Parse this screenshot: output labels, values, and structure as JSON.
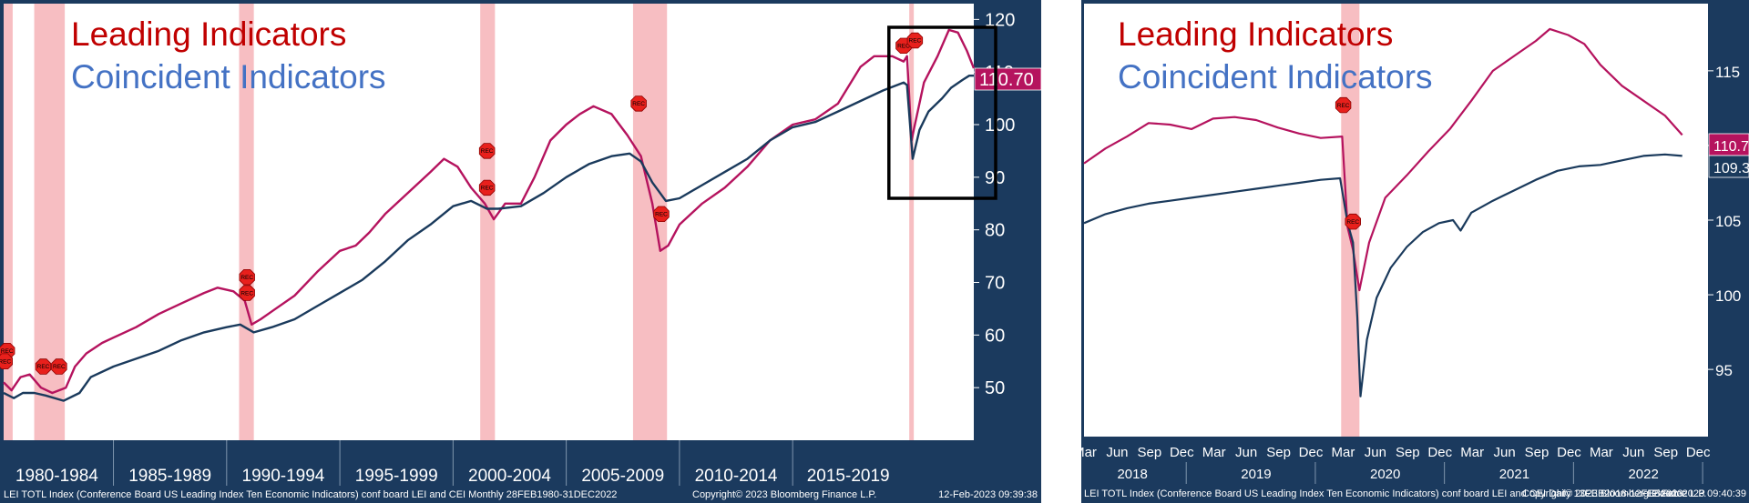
{
  "chart_data": [
    {
      "type": "line",
      "title": "",
      "legend": [
        "Leading Indicators",
        "Coincident Indicators"
      ],
      "legend_placement": "top-left",
      "ylim": [
        40,
        123
      ],
      "yticks": [
        50,
        60,
        70,
        80,
        90,
        100,
        110,
        120
      ],
      "y_axis_side": "right",
      "x_range": [
        1980.15,
        2023.0
      ],
      "period_labels": [
        "1980-1984",
        "1985-1989",
        "1990-1994",
        "1995-1999",
        "2000-2004",
        "2005-2009",
        "2010-2014",
        "2015-2019"
      ],
      "period_starts": [
        1980,
        1985,
        1990,
        1995,
        2000,
        2005,
        2010,
        2015
      ],
      "last_values": [
        {
          "value": "110.70",
          "color": "#b5135e"
        }
      ],
      "recessions": [
        [
          1980.0,
          1980.55
        ],
        [
          1981.5,
          1982.85
        ],
        [
          1990.55,
          1991.2
        ],
        [
          2001.2,
          2001.85
        ],
        [
          2007.95,
          2009.45
        ],
        [
          2020.15,
          2020.35
        ]
      ],
      "rec_markers": [
        {
          "year": 1980.3,
          "value": 57
        },
        {
          "year": 1980.2,
          "value": 55
        },
        {
          "year": 1981.9,
          "value": 54
        },
        {
          "year": 1982.6,
          "value": 54
        },
        {
          "year": 1990.9,
          "value": 71
        },
        {
          "year": 1990.9,
          "value": 68
        },
        {
          "year": 2001.5,
          "value": 95
        },
        {
          "year": 2001.5,
          "value": 88
        },
        {
          "year": 2008.2,
          "value": 104
        },
        {
          "year": 2009.2,
          "value": 83
        },
        {
          "year": 2019.9,
          "value": 115
        },
        {
          "year": 2020.4,
          "value": 116
        }
      ],
      "series": [
        {
          "name": "Leading Indicators",
          "color": "#b5135e",
          "points": [
            [
              1980.15,
              51
            ],
            [
              1980.5,
              49.5
            ],
            [
              1980.9,
              52
            ],
            [
              1981.3,
              52.5
            ],
            [
              1981.8,
              50
            ],
            [
              1982.3,
              49
            ],
            [
              1982.9,
              50
            ],
            [
              1983.3,
              54
            ],
            [
              1983.8,
              56.5
            ],
            [
              1984.5,
              58.5
            ],
            [
              1985,
              59.5
            ],
            [
              1986,
              61.5
            ],
            [
              1987,
              64
            ],
            [
              1988,
              66
            ],
            [
              1989,
              68
            ],
            [
              1989.6,
              69
            ],
            [
              1990.3,
              68.3
            ],
            [
              1990.8,
              66.5
            ],
            [
              1991.1,
              62
            ],
            [
              1991.5,
              63
            ],
            [
              1992,
              64.5
            ],
            [
              1993,
              67.5
            ],
            [
              1994,
              72
            ],
            [
              1995,
              76
            ],
            [
              1995.7,
              77
            ],
            [
              1996.3,
              79.5
            ],
            [
              1997,
              83
            ],
            [
              1998,
              87
            ],
            [
              1999,
              91
            ],
            [
              1999.6,
              93.5
            ],
            [
              2000.2,
              92
            ],
            [
              2000.8,
              88
            ],
            [
              2001.4,
              85
            ],
            [
              2001.8,
              82
            ],
            [
              2002.3,
              85
            ],
            [
              2003,
              85
            ],
            [
              2003.6,
              90
            ],
            [
              2004.3,
              97
            ],
            [
              2005,
              100
            ],
            [
              2005.6,
              102
            ],
            [
              2006.2,
              103.5
            ],
            [
              2007,
              102
            ],
            [
              2007.7,
              98
            ],
            [
              2008.3,
              94
            ],
            [
              2008.8,
              85
            ],
            [
              2009.15,
              76
            ],
            [
              2009.5,
              77
            ],
            [
              2010,
              81
            ],
            [
              2011,
              85
            ],
            [
              2012,
              88
            ],
            [
              2013,
              92
            ],
            [
              2014,
              97
            ],
            [
              2015,
              100
            ],
            [
              2016,
              101
            ],
            [
              2017,
              104
            ],
            [
              2018,
              111
            ],
            [
              2018.6,
              113
            ],
            [
              2019.4,
              113
            ],
            [
              2019.9,
              112
            ],
            [
              2020.05,
              113
            ],
            [
              2020.25,
              97
            ],
            [
              2020.35,
              99
            ],
            [
              2020.8,
              108
            ],
            [
              2021.4,
              113
            ],
            [
              2021.9,
              118
            ],
            [
              2022.3,
              117.5
            ],
            [
              2022.7,
              114
            ],
            [
              2023.0,
              110.7
            ]
          ]
        },
        {
          "name": "Coincident Indicators",
          "color": "#1a3a5c",
          "points": [
            [
              1980.15,
              49
            ],
            [
              1980.6,
              48
            ],
            [
              1981,
              49
            ],
            [
              1981.5,
              49
            ],
            [
              1982,
              48.5
            ],
            [
              1982.8,
              47.5
            ],
            [
              1983.5,
              49
            ],
            [
              1984,
              52
            ],
            [
              1985,
              54
            ],
            [
              1986,
              55.5
            ],
            [
              1987,
              57
            ],
            [
              1988,
              59
            ],
            [
              1989,
              60.5
            ],
            [
              1990,
              61.5
            ],
            [
              1990.6,
              62
            ],
            [
              1991.2,
              60.5
            ],
            [
              1992,
              61.5
            ],
            [
              1993,
              63
            ],
            [
              1994,
              65.5
            ],
            [
              1995,
              68
            ],
            [
              1996,
              70.5
            ],
            [
              1997,
              74
            ],
            [
              1998,
              78
            ],
            [
              1999,
              81
            ],
            [
              2000,
              84.5
            ],
            [
              2000.8,
              85.5
            ],
            [
              2001.5,
              84
            ],
            [
              2002,
              84
            ],
            [
              2003,
              84.5
            ],
            [
              2004,
              87
            ],
            [
              2005,
              90
            ],
            [
              2006,
              92.5
            ],
            [
              2007,
              94
            ],
            [
              2007.8,
              94.5
            ],
            [
              2008.3,
              93
            ],
            [
              2008.8,
              89
            ],
            [
              2009.4,
              85.5
            ],
            [
              2010,
              86
            ],
            [
              2011,
              88.5
            ],
            [
              2012,
              91
            ],
            [
              2013,
              93.5
            ],
            [
              2014,
              97
            ],
            [
              2015,
              99.5
            ],
            [
              2016,
              100.5
            ],
            [
              2017,
              102.5
            ],
            [
              2018,
              104.5
            ],
            [
              2019,
              106.5
            ],
            [
              2019.9,
              108
            ],
            [
              2020.05,
              107.5
            ],
            [
              2020.3,
              93.5
            ],
            [
              2020.6,
              99
            ],
            [
              2021,
              102.5
            ],
            [
              2021.6,
              105
            ],
            [
              2022,
              107
            ],
            [
              2022.5,
              108.5
            ],
            [
              2022.8,
              109.3
            ],
            [
              2023.0,
              109.3
            ]
          ]
        }
      ]
    },
    {
      "type": "line",
      "title": "",
      "legend": [
        "Leading Indicators",
        "Coincident Indicators"
      ],
      "legend_placement": "top-left",
      "ylim": [
        90.5,
        119.5
      ],
      "yticks": [
        95,
        100,
        105,
        110,
        115
      ],
      "y_axis_side": "right",
      "x_range": [
        0,
        58
      ],
      "month_labels": [
        "Mar",
        "Jun",
        "Sep",
        "Dec",
        "Mar",
        "Jun",
        "Sep",
        "Dec",
        "Mar",
        "Jun",
        "Sep",
        "Dec",
        "Mar",
        "Jun",
        "Sep",
        "Dec",
        "Mar",
        "Jun",
        "Sep",
        "Dec"
      ],
      "year_labels": [
        "2018",
        "2019",
        "2020",
        "2021",
        "2022"
      ],
      "last_values": [
        {
          "value": "110.70",
          "color": "#b5135e"
        },
        {
          "value": "109.30",
          "color": "#1a3a5c"
        }
      ],
      "recessions": [
        [
          23.9,
          25.6
        ]
      ],
      "rec_markers": [
        {
          "month": 24.1,
          "value": 112.7
        },
        {
          "month": 25.0,
          "value": 104.9
        }
      ],
      "series": [
        {
          "name": "Leading Indicators",
          "color": "#b5135e",
          "points": [
            [
              0,
              108.8
            ],
            [
              2,
              109.8
            ],
            [
              4,
              110.6
            ],
            [
              6,
              111.5
            ],
            [
              8,
              111.4
            ],
            [
              10,
              111.1
            ],
            [
              12,
              111.8
            ],
            [
              14,
              111.9
            ],
            [
              16,
              111.7
            ],
            [
              18,
              111.2
            ],
            [
              20,
              110.8
            ],
            [
              22,
              110.5
            ],
            [
              24,
              110.6
            ],
            [
              24.5,
              104.5
            ],
            [
              25,
              103.0
            ],
            [
              25.6,
              100.3
            ],
            [
              26.5,
              103.5
            ],
            [
              28,
              106.5
            ],
            [
              30,
              108.0
            ],
            [
              32,
              109.6
            ],
            [
              34,
              111.1
            ],
            [
              36,
              113.0
            ],
            [
              38,
              115.0
            ],
            [
              40,
              116.0
            ],
            [
              42,
              117.0
            ],
            [
              43.3,
              117.8
            ],
            [
              45,
              117.4
            ],
            [
              46.5,
              116.8
            ],
            [
              48,
              115.4
            ],
            [
              50,
              114.0
            ],
            [
              52,
              113.0
            ],
            [
              54,
              112.0
            ],
            [
              55.6,
              110.7
            ]
          ]
        },
        {
          "name": "Coincident Indicators",
          "color": "#1a3a5c",
          "points": [
            [
              0,
              104.8
            ],
            [
              2,
              105.4
            ],
            [
              4,
              105.8
            ],
            [
              6,
              106.1
            ],
            [
              8,
              106.3
            ],
            [
              10,
              106.5
            ],
            [
              12,
              106.7
            ],
            [
              14,
              106.9
            ],
            [
              16,
              107.1
            ],
            [
              18,
              107.3
            ],
            [
              20,
              107.5
            ],
            [
              22,
              107.7
            ],
            [
              23.8,
              107.8
            ],
            [
              24.5,
              104.8
            ],
            [
              25.0,
              103.5
            ],
            [
              25.4,
              98.5
            ],
            [
              25.7,
              93.2
            ],
            [
              26.3,
              97.0
            ],
            [
              27.2,
              99.8
            ],
            [
              28.5,
              101.8
            ],
            [
              30,
              103.2
            ],
            [
              31.5,
              104.2
            ],
            [
              33,
              104.8
            ],
            [
              34.3,
              105.0
            ],
            [
              35,
              104.3
            ],
            [
              36,
              105.5
            ],
            [
              38,
              106.3
            ],
            [
              40,
              107.0
            ],
            [
              42,
              107.7
            ],
            [
              44,
              108.3
            ],
            [
              46,
              108.6
            ],
            [
              48,
              108.7
            ],
            [
              50,
              109.0
            ],
            [
              52,
              109.3
            ],
            [
              54,
              109.4
            ],
            [
              55.6,
              109.3
            ]
          ]
        }
      ]
    }
  ],
  "left_footer": {
    "source": "LEI TOTL Index (Conference Board US Leading Index Ten Economic Indicators) conf board LEI and CEI  Monthly 28FEB1980-31DEC2022",
    "copyright": "Copyright© 2023 Bloomberg Finance L.P.",
    "timestamp": "12-Feb-2023 09:39:38"
  },
  "right_footer": {
    "source": "LEI TOTL Index (Conference Board US Leading Index Ten Economic Indicators) conf board LEI and CEI  Daily 13FEB2018-12FEB2023",
    "copyright": "Copyright© 2023 Bloomberg Finance L.P.",
    "timestamp": "12-Feb-2023 09:40:39"
  },
  "rec_label": "REC",
  "colors": {
    "navy": "#1b3a5e",
    "recession": "#f6b3b7",
    "rec_marker": "#e8201c",
    "legend_leading": "#c00000",
    "legend_coincident": "#4472c4"
  }
}
